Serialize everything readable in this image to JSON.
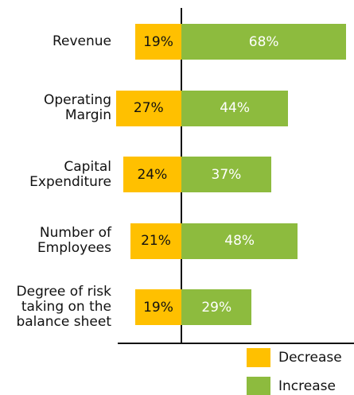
{
  "chart_data": {
    "type": "diverging-bar",
    "categories": [
      "Revenue",
      "Operating\nMargin",
      "Capital\nExpenditure",
      "Number of\nEmployees",
      "Degree of risk\ntaking on the\nbalance sheet"
    ],
    "series": [
      {
        "name": "Decrease",
        "color": "#ffc000",
        "values": [
          19,
          27,
          24,
          21,
          19
        ],
        "value_labels": [
          "19%",
          "27%",
          "24%",
          "21%",
          "19%"
        ]
      },
      {
        "name": "Increase",
        "color": "#8dbb3e",
        "values": [
          68,
          44,
          37,
          48,
          29
        ],
        "value_labels": [
          "68%",
          "44%",
          "37%",
          "48%",
          "29%"
        ]
      }
    ]
  }
}
